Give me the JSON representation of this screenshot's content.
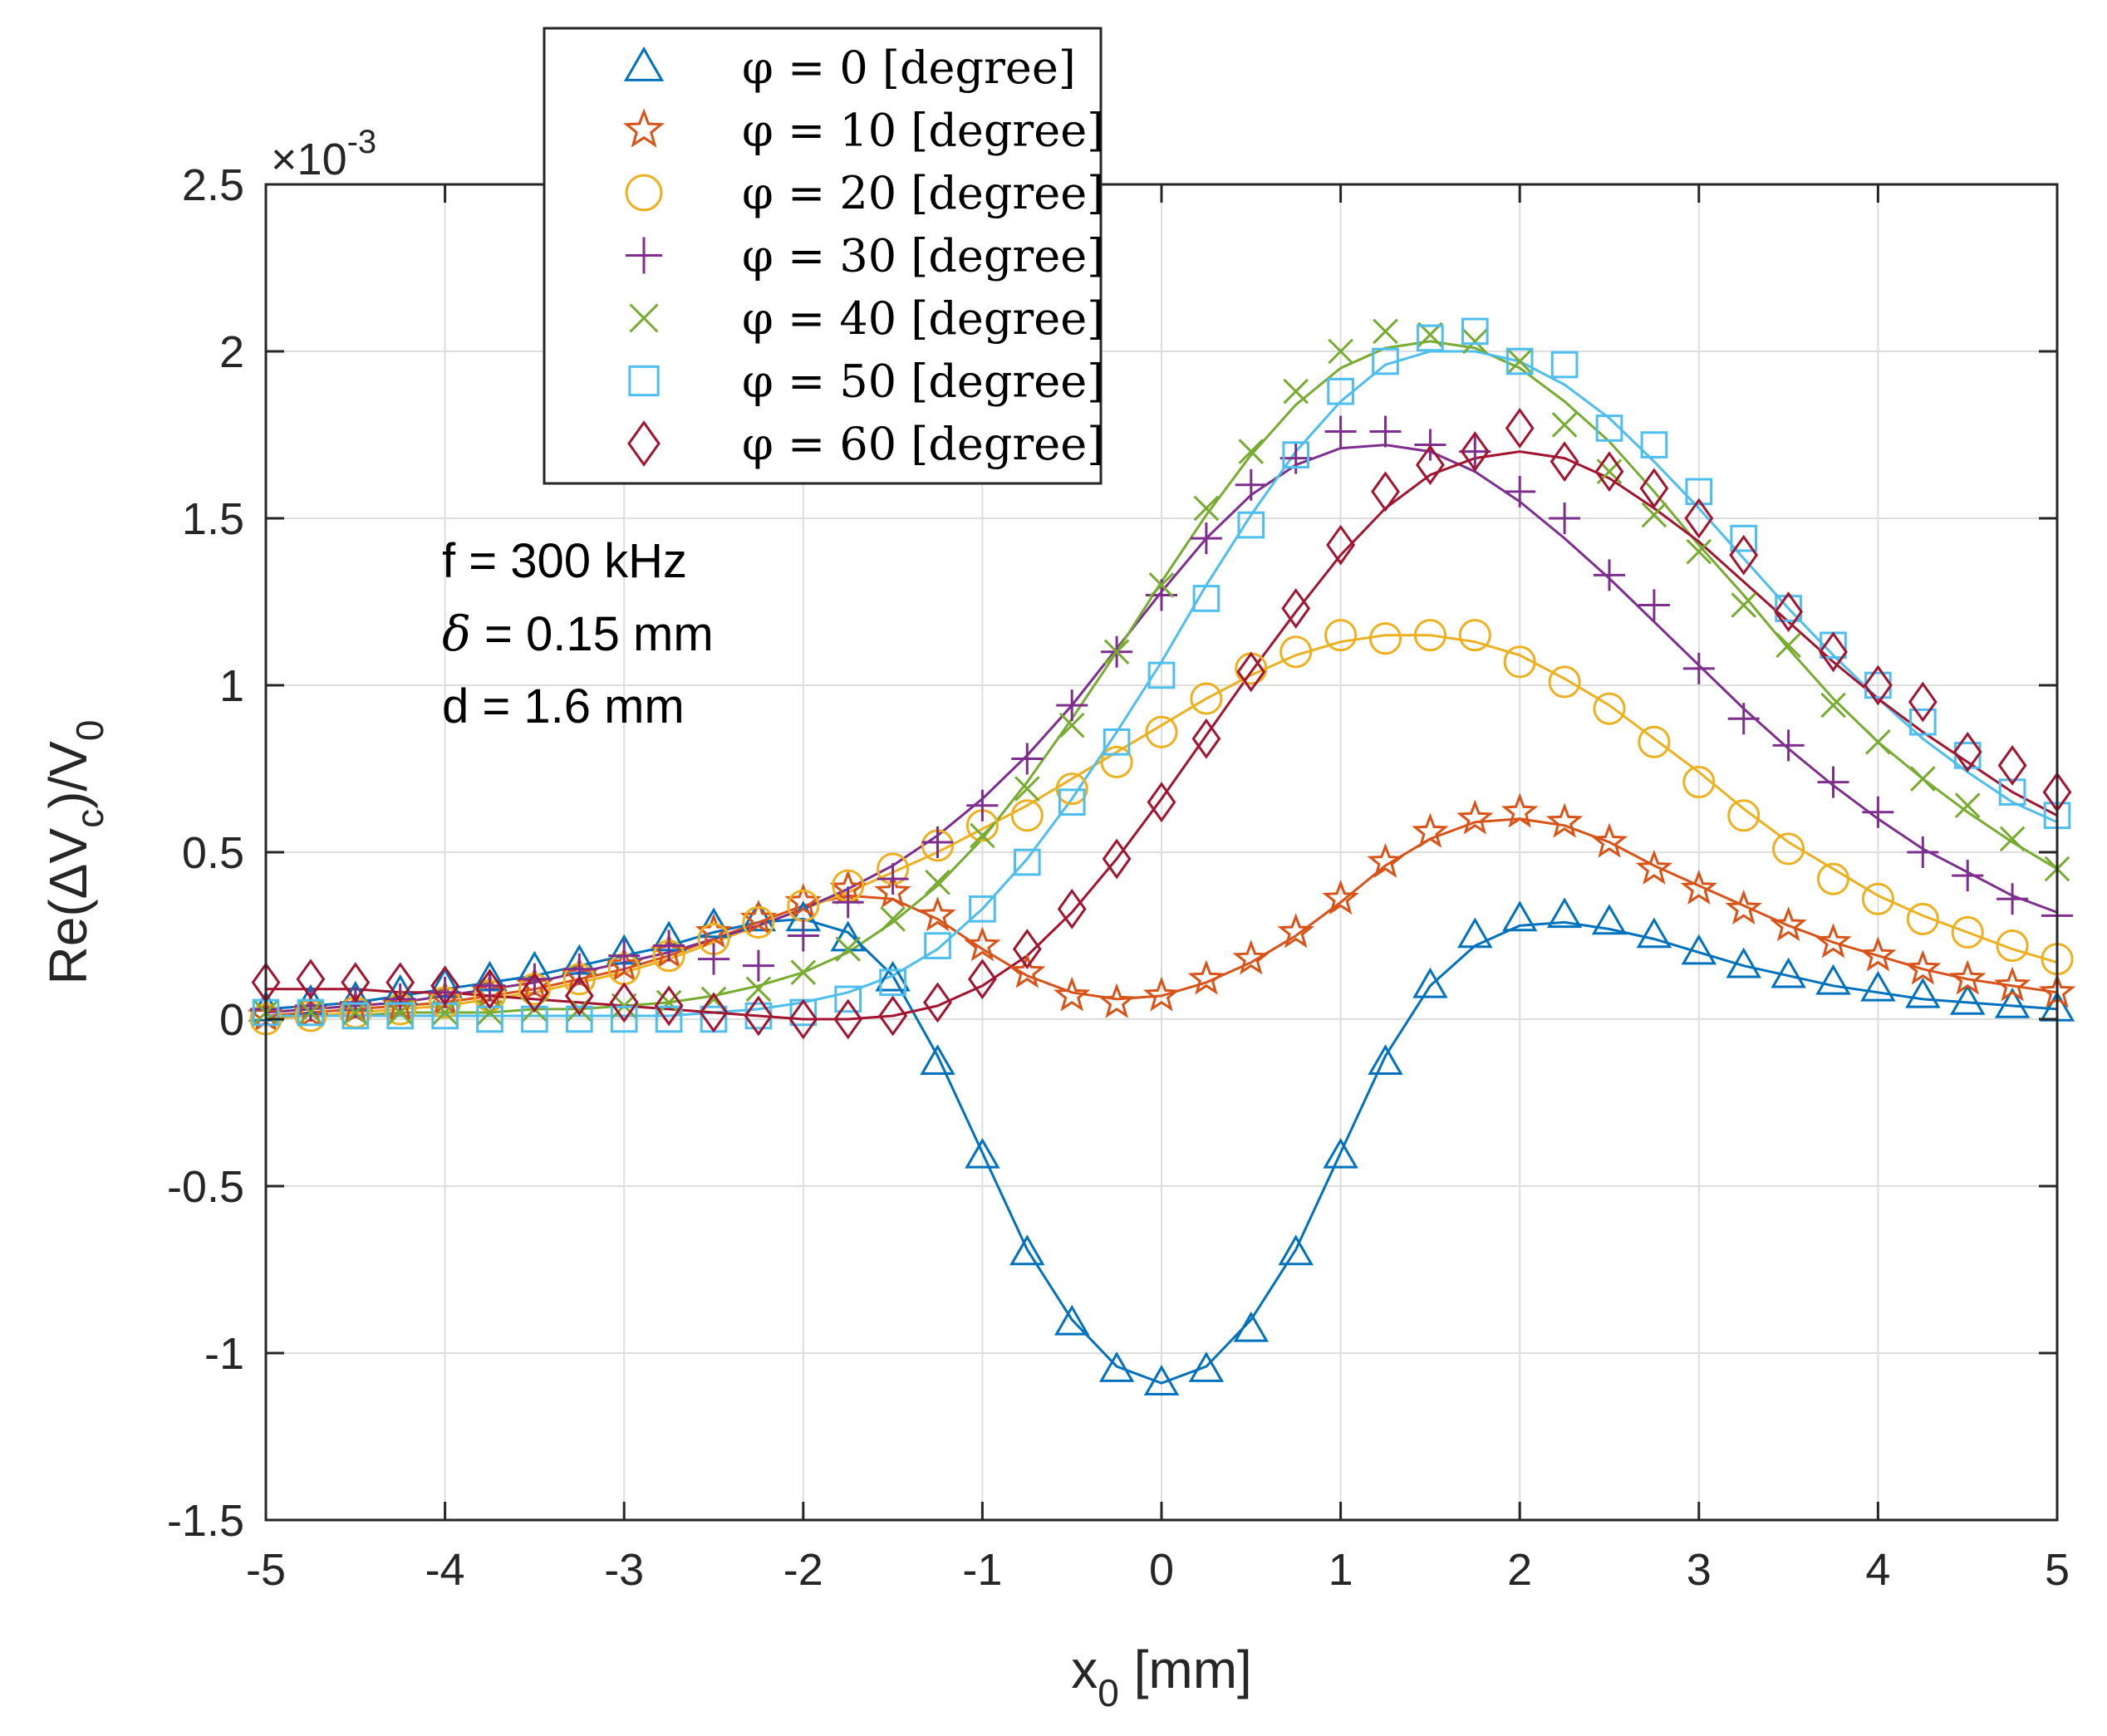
{
  "chart_data": {
    "type": "line",
    "title": "",
    "xlabel": "x",
    "xlabel_sub": "0",
    "xlabel_unit": " [mm]",
    "ylabel": "Re(ΔV",
    "ylabel_sub1": "c",
    "ylabel_mid": ")/V",
    "ylabel_sub2": "0",
    "y_multiplier_prefix": "×10",
    "y_multiplier_exp": "-3",
    "xlim": [
      -5,
      5
    ],
    "ylim": [
      -1.5,
      2.5
    ],
    "x_ticks": [
      -5,
      -4,
      -3,
      -2,
      -1,
      0,
      1,
      2,
      3,
      4,
      5
    ],
    "y_ticks": [
      -1.5,
      -1,
      -0.5,
      0,
      0.5,
      1,
      1.5,
      2,
      2.5
    ],
    "x_tick_labels": [
      "-5",
      "-4",
      "-3",
      "-2",
      "-1",
      "0",
      "1",
      "2",
      "3",
      "4",
      "5"
    ],
    "y_tick_labels": [
      "-1.5",
      "-1",
      "-0.5",
      "0",
      "0.5",
      "1",
      "1.5",
      "2",
      "2.5"
    ],
    "grid": true,
    "legend_position": "top-left",
    "annotations": [
      {
        "prefix": "",
        "symbol": "",
        "text": "f = 300 kHz"
      },
      {
        "prefix": "",
        "symbol": "δ",
        "text": " = 0.15 mm"
      },
      {
        "prefix": "",
        "symbol": "",
        "text": "d = 1.6 mm"
      }
    ],
    "x": [
      -5,
      -4.75,
      -4.5,
      -4.25,
      -4,
      -3.75,
      -3.5,
      -3.25,
      -3,
      -2.75,
      -2.5,
      -2.25,
      -2,
      -1.75,
      -1.5,
      -1.25,
      -1,
      -0.75,
      -0.5,
      -0.25,
      0,
      0.25,
      0.5,
      0.75,
      1,
      1.25,
      1.5,
      1.75,
      2,
      2.25,
      2.5,
      2.75,
      3,
      3.25,
      3.5,
      3.75,
      4,
      4.25,
      4.5,
      4.75,
      5
    ],
    "series": [
      {
        "name": "phi0",
        "legend_label": "φ = 0 [degree]",
        "color": "#0072BD",
        "marker": "triangle",
        "values": [
          0.03,
          0.05,
          0.06,
          0.08,
          0.1,
          0.12,
          0.15,
          0.17,
          0.2,
          0.24,
          0.28,
          0.3,
          0.3,
          0.24,
          0.12,
          -0.13,
          -0.41,
          -0.7,
          -0.91,
          -1.05,
          -1.09,
          -1.05,
          -0.93,
          -0.7,
          -0.41,
          -0.13,
          0.1,
          0.25,
          0.3,
          0.31,
          0.29,
          0.25,
          0.2,
          0.16,
          0.13,
          0.11,
          0.09,
          0.07,
          0.05,
          0.04,
          0.03
        ],
        "fit": [
          0.03,
          0.04,
          0.05,
          0.07,
          0.09,
          0.11,
          0.13,
          0.16,
          0.19,
          0.22,
          0.26,
          0.29,
          0.3,
          0.26,
          0.13,
          -0.11,
          -0.4,
          -0.69,
          -0.9,
          -1.04,
          -1.09,
          -1.04,
          -0.9,
          -0.69,
          -0.4,
          -0.11,
          0.1,
          0.22,
          0.28,
          0.29,
          0.27,
          0.24,
          0.2,
          0.16,
          0.13,
          0.1,
          0.08,
          0.06,
          0.05,
          0.04,
          0.03
        ]
      },
      {
        "name": "phi10",
        "legend_label": "φ = 10 [degree]",
        "color": "#D95319",
        "marker": "star",
        "values": [
          0.01,
          0.02,
          0.03,
          0.04,
          0.06,
          0.08,
          0.1,
          0.13,
          0.16,
          0.2,
          0.26,
          0.3,
          0.35,
          0.39,
          0.38,
          0.31,
          0.22,
          0.14,
          0.07,
          0.05,
          0.07,
          0.12,
          0.18,
          0.26,
          0.36,
          0.47,
          0.56,
          0.6,
          0.62,
          0.59,
          0.53,
          0.45,
          0.39,
          0.33,
          0.28,
          0.23,
          0.19,
          0.15,
          0.12,
          0.1,
          0.08
        ],
        "fit": [
          0.01,
          0.02,
          0.03,
          0.04,
          0.05,
          0.07,
          0.09,
          0.12,
          0.15,
          0.19,
          0.24,
          0.29,
          0.34,
          0.37,
          0.36,
          0.3,
          0.21,
          0.13,
          0.08,
          0.06,
          0.07,
          0.11,
          0.17,
          0.25,
          0.35,
          0.46,
          0.54,
          0.59,
          0.6,
          0.58,
          0.53,
          0.46,
          0.4,
          0.34,
          0.28,
          0.23,
          0.19,
          0.15,
          0.12,
          0.1,
          0.08
        ]
      },
      {
        "name": "phi20",
        "legend_label": "φ = 20 [degree]",
        "color": "#EDB120",
        "marker": "circle",
        "values": [
          0.0,
          0.01,
          0.02,
          0.03,
          0.05,
          0.07,
          0.09,
          0.12,
          0.15,
          0.19,
          0.24,
          0.29,
          0.34,
          0.4,
          0.45,
          0.52,
          0.58,
          0.61,
          0.69,
          0.77,
          0.86,
          0.96,
          1.05,
          1.1,
          1.15,
          1.14,
          1.15,
          1.15,
          1.07,
          1.01,
          0.93,
          0.83,
          0.71,
          0.61,
          0.51,
          0.42,
          0.36,
          0.3,
          0.26,
          0.22,
          0.18
        ],
        "fit": [
          0.0,
          0.01,
          0.02,
          0.03,
          0.04,
          0.06,
          0.08,
          0.11,
          0.14,
          0.18,
          0.23,
          0.28,
          0.33,
          0.38,
          0.44,
          0.5,
          0.57,
          0.64,
          0.72,
          0.8,
          0.88,
          0.96,
          1.03,
          1.09,
          1.13,
          1.15,
          1.15,
          1.13,
          1.09,
          1.02,
          0.94,
          0.84,
          0.74,
          0.63,
          0.53,
          0.45,
          0.37,
          0.31,
          0.26,
          0.21,
          0.17
        ]
      },
      {
        "name": "phi30",
        "legend_label": "φ = 30 [degree]",
        "color": "#7E2F8E",
        "marker": "plus",
        "values": [
          0.03,
          0.04,
          0.05,
          0.06,
          0.08,
          0.1,
          0.12,
          0.15,
          0.19,
          0.22,
          0.18,
          0.16,
          0.25,
          0.35,
          0.42,
          0.53,
          0.64,
          0.78,
          0.94,
          1.1,
          1.27,
          1.44,
          1.6,
          1.68,
          1.76,
          1.76,
          1.72,
          1.7,
          1.58,
          1.5,
          1.33,
          1.24,
          1.05,
          0.9,
          0.82,
          0.71,
          0.62,
          0.5,
          0.43,
          0.36,
          0.31
        ],
        "fit": [
          0.02,
          0.03,
          0.04,
          0.05,
          0.07,
          0.09,
          0.11,
          0.14,
          0.17,
          0.2,
          0.24,
          0.28,
          0.33,
          0.39,
          0.46,
          0.55,
          0.66,
          0.79,
          0.94,
          1.11,
          1.28,
          1.44,
          1.57,
          1.66,
          1.71,
          1.72,
          1.7,
          1.64,
          1.55,
          1.44,
          1.32,
          1.19,
          1.06,
          0.93,
          0.81,
          0.7,
          0.6,
          0.51,
          0.44,
          0.37,
          0.32
        ]
      },
      {
        "name": "phi40",
        "legend_label": "φ = 40 [degree]",
        "color": "#77AC30",
        "marker": "cross",
        "values": [
          0.02,
          0.02,
          0.02,
          0.02,
          0.02,
          0.02,
          0.03,
          0.03,
          0.04,
          0.05,
          0.06,
          0.09,
          0.14,
          0.21,
          0.3,
          0.41,
          0.55,
          0.69,
          0.88,
          1.1,
          1.3,
          1.53,
          1.7,
          1.88,
          2.0,
          2.06,
          2.05,
          2.03,
          1.97,
          1.78,
          1.64,
          1.51,
          1.4,
          1.24,
          1.12,
          0.94,
          0.83,
          0.72,
          0.64,
          0.54,
          0.45
        ],
        "fit": [
          0.01,
          0.01,
          0.01,
          0.02,
          0.02,
          0.02,
          0.03,
          0.03,
          0.04,
          0.05,
          0.07,
          0.1,
          0.14,
          0.2,
          0.29,
          0.4,
          0.54,
          0.71,
          0.9,
          1.1,
          1.31,
          1.51,
          1.69,
          1.84,
          1.95,
          2.01,
          2.03,
          2.01,
          1.95,
          1.85,
          1.73,
          1.58,
          1.42,
          1.27,
          1.11,
          0.96,
          0.83,
          0.72,
          0.62,
          0.53,
          0.45
        ]
      },
      {
        "name": "phi50",
        "legend_label": "φ = 50 [degree]",
        "color": "#4DBEEE",
        "marker": "square",
        "values": [
          0.02,
          0.02,
          0.01,
          0.01,
          0.01,
          0.0,
          0.0,
          0.0,
          0.0,
          0.0,
          0.0,
          0.01,
          0.02,
          0.06,
          0.11,
          0.22,
          0.33,
          0.47,
          0.65,
          0.83,
          1.03,
          1.26,
          1.48,
          1.69,
          1.88,
          1.97,
          2.04,
          2.06,
          1.97,
          1.96,
          1.77,
          1.72,
          1.58,
          1.44,
          1.23,
          1.12,
          1.0,
          0.89,
          0.79,
          0.68,
          0.61
        ],
        "fit": [
          0.01,
          0.01,
          0.01,
          0.01,
          0.01,
          0.01,
          0.01,
          0.01,
          0.01,
          0.01,
          0.02,
          0.03,
          0.05,
          0.08,
          0.13,
          0.21,
          0.33,
          0.48,
          0.66,
          0.86,
          1.07,
          1.3,
          1.51,
          1.7,
          1.85,
          1.96,
          2.0,
          2.0,
          1.97,
          1.9,
          1.8,
          1.67,
          1.53,
          1.38,
          1.23,
          1.09,
          0.96,
          0.84,
          0.74,
          0.65,
          0.59
        ]
      },
      {
        "name": "phi60",
        "legend_label": "φ = 60 [degree]",
        "color": "#A2142F",
        "marker": "diamond",
        "values": [
          0.11,
          0.12,
          0.11,
          0.11,
          0.1,
          0.09,
          0.08,
          0.07,
          0.05,
          0.04,
          0.02,
          0.01,
          0.0,
          0.0,
          0.01,
          0.05,
          0.12,
          0.21,
          0.33,
          0.48,
          0.65,
          0.84,
          1.04,
          1.23,
          1.42,
          1.58,
          1.66,
          1.7,
          1.77,
          1.67,
          1.64,
          1.59,
          1.5,
          1.39,
          1.22,
          1.1,
          1.0,
          0.95,
          0.8,
          0.76,
          0.68
        ],
        "fit": [
          0.09,
          0.09,
          0.09,
          0.08,
          0.08,
          0.07,
          0.06,
          0.05,
          0.04,
          0.03,
          0.02,
          0.01,
          0.0,
          0.0,
          0.01,
          0.04,
          0.1,
          0.19,
          0.32,
          0.48,
          0.66,
          0.85,
          1.04,
          1.22,
          1.39,
          1.53,
          1.63,
          1.68,
          1.7,
          1.68,
          1.62,
          1.53,
          1.43,
          1.31,
          1.19,
          1.07,
          0.96,
          0.86,
          0.77,
          0.68,
          0.61
        ]
      }
    ]
  }
}
